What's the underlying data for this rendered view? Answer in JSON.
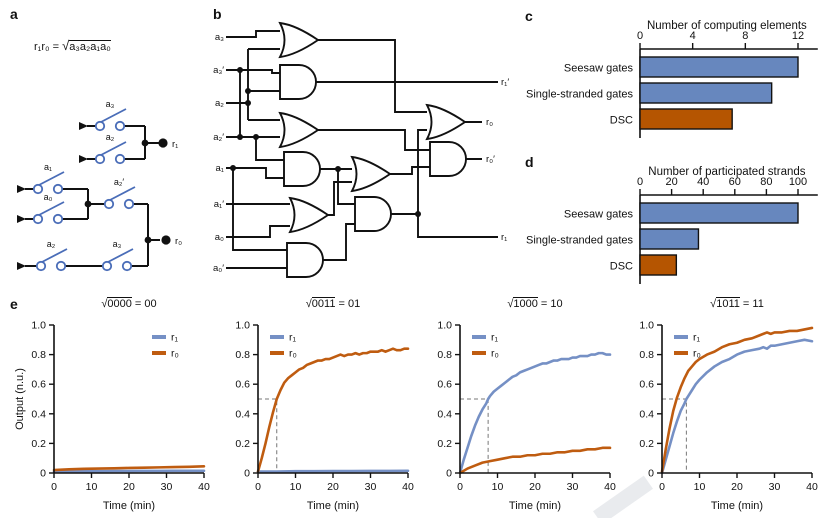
{
  "figure": {
    "panel_labels": {
      "a": "a",
      "b": "b",
      "c": "c",
      "d": "d",
      "e": "e"
    },
    "colors": {
      "bar_blue": "#6787be",
      "bar_orange": "#b55501",
      "line_blue": "#7590c5",
      "line_orange": "#bf5c10",
      "switch_blue": "#4a6db8",
      "axis_black": "#111111",
      "dash_gray": "#777777"
    }
  },
  "panel_a": {
    "formula_lhs": "r₁r₀ = ",
    "sqrt_sign": "√",
    "formula_radicand": "a₃a₂a₁a₀",
    "switches": [
      "a₃",
      "a₂",
      "a₁",
      "a₀",
      "a₂′",
      "a₂",
      "a₃"
    ],
    "outputs": {
      "r1": "r₁",
      "r0": "r₀"
    }
  },
  "panel_b": {
    "inputs": [
      "a₃",
      "a₃′",
      "a₂",
      "a₂′",
      "a₁",
      "a₁′",
      "a₀",
      "a₀′"
    ],
    "outputs": [
      "r₁′",
      "r₀",
      "r₀′",
      "r₁"
    ]
  },
  "chart_data": [
    {
      "id": "c",
      "type": "bar",
      "orientation": "horizontal",
      "title": "Number of computing elements",
      "categories": [
        "Seesaw gates",
        "Single-stranded gates",
        "DSC"
      ],
      "values": [
        12,
        10,
        7
      ],
      "bar_colors": [
        "#6787be",
        "#6787be",
        "#b55501"
      ],
      "xticks": [
        0,
        4,
        8,
        12
      ],
      "xlim": [
        0,
        13.2
      ],
      "grid": false
    },
    {
      "id": "d",
      "type": "bar",
      "orientation": "horizontal",
      "title": "Number of participated strands",
      "categories": [
        "Seesaw gates",
        "Single-stranded gates",
        "DSC"
      ],
      "values": [
        100,
        37,
        23
      ],
      "bar_colors": [
        "#6787be",
        "#6787be",
        "#b55501"
      ],
      "xticks": [
        0,
        20,
        40,
        60,
        80,
        100
      ],
      "xlim": [
        0,
        110
      ],
      "grid": false
    },
    {
      "id": "e1",
      "type": "line",
      "title_sqrt": "√",
      "title_radicand": "0000",
      "title_suffix": " = 00",
      "xlabel": "Time (min)",
      "ylabel": "Output (n.u.)",
      "xticks": [
        0,
        10,
        20,
        30,
        40
      ],
      "yticks": [
        0,
        0.2,
        0.4,
        0.6,
        0.8,
        1.0
      ],
      "xlim": [
        0,
        40
      ],
      "ylim": [
        0,
        1.0
      ],
      "legend": [
        "r₁",
        "r₀"
      ],
      "legend_pos": "top-right",
      "dash_t50": null,
      "series": [
        {
          "name": "r₁",
          "color": "#7590c5",
          "points": [
            [
              0,
              0.01
            ],
            [
              4,
              0.01
            ],
            [
              8,
              0.012
            ],
            [
              12,
              0.012
            ],
            [
              16,
              0.013
            ],
            [
              20,
              0.013
            ],
            [
              24,
              0.014
            ],
            [
              28,
              0.014
            ],
            [
              32,
              0.015
            ],
            [
              36,
              0.015
            ],
            [
              40,
              0.015
            ]
          ]
        },
        {
          "name": "r₀",
          "color": "#bf5c10",
          "points": [
            [
              0,
              0.02
            ],
            [
              4,
              0.025
            ],
            [
              8,
              0.028
            ],
            [
              12,
              0.03
            ],
            [
              16,
              0.032
            ],
            [
              20,
              0.034
            ],
            [
              24,
              0.036
            ],
            [
              28,
              0.038
            ],
            [
              32,
              0.04
            ],
            [
              36,
              0.042
            ],
            [
              40,
              0.045
            ]
          ]
        }
      ]
    },
    {
      "id": "e2",
      "type": "line",
      "title_sqrt": "√",
      "title_radicand": "0011",
      "title_suffix": " = 01",
      "xlabel": "Time (min)",
      "ylabel": null,
      "xticks": [
        0,
        10,
        20,
        30,
        40
      ],
      "yticks": [
        0,
        0.2,
        0.4,
        0.6,
        0.8,
        1.0
      ],
      "xlim": [
        0,
        40
      ],
      "ylim": [
        0,
        1.0
      ],
      "legend": [
        "r₁",
        "r₀"
      ],
      "legend_pos": "top-left",
      "dash_t50": 5,
      "series": [
        {
          "name": "r₁",
          "color": "#7590c5",
          "points": [
            [
              0,
              0.01
            ],
            [
              5,
              0.01
            ],
            [
              10,
              0.012
            ],
            [
              15,
              0.012
            ],
            [
              20,
              0.013
            ],
            [
              25,
              0.013
            ],
            [
              30,
              0.014
            ],
            [
              35,
              0.014
            ],
            [
              40,
              0.015
            ]
          ]
        },
        {
          "name": "r₀",
          "color": "#bf5c10",
          "points": [
            [
              0,
              0.01
            ],
            [
              1,
              0.1
            ],
            [
              2,
              0.2
            ],
            [
              3,
              0.31
            ],
            [
              4,
              0.41
            ],
            [
              5,
              0.5
            ],
            [
              6,
              0.56
            ],
            [
              7,
              0.61
            ],
            [
              8,
              0.64
            ],
            [
              9,
              0.66
            ],
            [
              10,
              0.68
            ],
            [
              11,
              0.7
            ],
            [
              12,
              0.71
            ],
            [
              13,
              0.73
            ],
            [
              14,
              0.74
            ],
            [
              15,
              0.75
            ],
            [
              16,
              0.76
            ],
            [
              17,
              0.76
            ],
            [
              18,
              0.77
            ],
            [
              19,
              0.77
            ],
            [
              20,
              0.78
            ],
            [
              21,
              0.79
            ],
            [
              22,
              0.8
            ],
            [
              23,
              0.79
            ],
            [
              24,
              0.8
            ],
            [
              25,
              0.8
            ],
            [
              26,
              0.81
            ],
            [
              27,
              0.8
            ],
            [
              28,
              0.81
            ],
            [
              29,
              0.81
            ],
            [
              30,
              0.82
            ],
            [
              31,
              0.82
            ],
            [
              32,
              0.82
            ],
            [
              33,
              0.83
            ],
            [
              34,
              0.82
            ],
            [
              35,
              0.83
            ],
            [
              36,
              0.84
            ],
            [
              37,
              0.83
            ],
            [
              38,
              0.83
            ],
            [
              39,
              0.84
            ],
            [
              40,
              0.84
            ]
          ]
        }
      ]
    },
    {
      "id": "e3",
      "type": "line",
      "title_sqrt": "√",
      "title_radicand": "1000",
      "title_suffix": " = 10",
      "xlabel": "Time (min)",
      "ylabel": null,
      "xticks": [
        0,
        10,
        20,
        30,
        40
      ],
      "yticks": [
        0,
        0.2,
        0.4,
        0.6,
        0.8,
        1.0
      ],
      "xlim": [
        0,
        40
      ],
      "ylim": [
        0,
        1.0
      ],
      "legend": [
        "r₁",
        "r₀"
      ],
      "legend_pos": "top-left",
      "dash_t50": 7.5,
      "series": [
        {
          "name": "r₁",
          "color": "#7590c5",
          "points": [
            [
              0,
              0
            ],
            [
              1,
              0.09
            ],
            [
              2,
              0.17
            ],
            [
              3,
              0.25
            ],
            [
              4,
              0.32
            ],
            [
              5,
              0.38
            ],
            [
              6,
              0.43
            ],
            [
              7,
              0.47
            ],
            [
              7.5,
              0.5
            ],
            [
              8,
              0.52
            ],
            [
              9,
              0.55
            ],
            [
              10,
              0.57
            ],
            [
              11,
              0.59
            ],
            [
              12,
              0.61
            ],
            [
              13,
              0.63
            ],
            [
              14,
              0.65
            ],
            [
              15,
              0.66
            ],
            [
              16,
              0.68
            ],
            [
              17,
              0.69
            ],
            [
              18,
              0.7
            ],
            [
              19,
              0.71
            ],
            [
              20,
              0.72
            ],
            [
              21,
              0.73
            ],
            [
              22,
              0.74
            ],
            [
              23,
              0.74
            ],
            [
              24,
              0.75
            ],
            [
              25,
              0.76
            ],
            [
              26,
              0.76
            ],
            [
              27,
              0.77
            ],
            [
              28,
              0.77
            ],
            [
              29,
              0.77
            ],
            [
              30,
              0.78
            ],
            [
              31,
              0.78
            ],
            [
              32,
              0.79
            ],
            [
              33,
              0.79
            ],
            [
              34,
              0.79
            ],
            [
              35,
              0.8
            ],
            [
              36,
              0.8
            ],
            [
              37,
              0.81
            ],
            [
              38,
              0.81
            ],
            [
              39,
              0.8
            ],
            [
              40,
              0.8
            ]
          ]
        },
        {
          "name": "r₀",
          "color": "#bf5c10",
          "points": [
            [
              0,
              0
            ],
            [
              2,
              0.03
            ],
            [
              4,
              0.05
            ],
            [
              6,
              0.07
            ],
            [
              8,
              0.08
            ],
            [
              10,
              0.09
            ],
            [
              12,
              0.1
            ],
            [
              14,
              0.11
            ],
            [
              16,
              0.11
            ],
            [
              18,
              0.12
            ],
            [
              20,
              0.12
            ],
            [
              22,
              0.13
            ],
            [
              24,
              0.13
            ],
            [
              26,
              0.14
            ],
            [
              28,
              0.14
            ],
            [
              30,
              0.15
            ],
            [
              32,
              0.15
            ],
            [
              34,
              0.16
            ],
            [
              36,
              0.16
            ],
            [
              38,
              0.17
            ],
            [
              40,
              0.17
            ]
          ]
        }
      ]
    },
    {
      "id": "e4",
      "type": "line",
      "title_sqrt": "√",
      "title_radicand": "1011",
      "title_suffix": " = 11",
      "xlabel": "Time (min)",
      "ylabel": null,
      "xticks": [
        0,
        10,
        20,
        30,
        40
      ],
      "yticks": [
        0,
        0.2,
        0.4,
        0.6,
        0.8,
        1.0
      ],
      "xlim": [
        0,
        40
      ],
      "ylim": [
        0,
        1.0
      ],
      "legend": [
        "r₁",
        "r₀"
      ],
      "legend_pos": "top-left",
      "dash_t50": 6.5,
      "series": [
        {
          "name": "r₁",
          "color": "#7590c5",
          "points": [
            [
              0,
              0
            ],
            [
              1,
              0.09
            ],
            [
              2,
              0.18
            ],
            [
              3,
              0.27
            ],
            [
              4,
              0.35
            ],
            [
              5,
              0.42
            ],
            [
              6,
              0.47
            ],
            [
              6.5,
              0.5
            ],
            [
              7,
              0.52
            ],
            [
              8,
              0.56
            ],
            [
              9,
              0.6
            ],
            [
              10,
              0.63
            ],
            [
              12,
              0.68
            ],
            [
              14,
              0.72
            ],
            [
              16,
              0.75
            ],
            [
              18,
              0.77
            ],
            [
              20,
              0.8
            ],
            [
              22,
              0.82
            ],
            [
              24,
              0.83
            ],
            [
              26,
              0.84
            ],
            [
              27,
              0.85
            ],
            [
              28,
              0.84
            ],
            [
              29,
              0.86
            ],
            [
              30,
              0.86
            ],
            [
              32,
              0.87
            ],
            [
              34,
              0.88
            ],
            [
              36,
              0.89
            ],
            [
              38,
              0.9
            ],
            [
              40,
              0.89
            ]
          ]
        },
        {
          "name": "r₀",
          "color": "#bf5c10",
          "points": [
            [
              0,
              0.01
            ],
            [
              1,
              0.16
            ],
            [
              2,
              0.3
            ],
            [
              3,
              0.42
            ],
            [
              4,
              0.51
            ],
            [
              5,
              0.58
            ],
            [
              6,
              0.64
            ],
            [
              7,
              0.69
            ],
            [
              8,
              0.72
            ],
            [
              9,
              0.75
            ],
            [
              10,
              0.77
            ],
            [
              12,
              0.8
            ],
            [
              14,
              0.82
            ],
            [
              16,
              0.85
            ],
            [
              18,
              0.87
            ],
            [
              20,
              0.88
            ],
            [
              22,
              0.9
            ],
            [
              24,
              0.91
            ],
            [
              26,
              0.93
            ],
            [
              27,
              0.94
            ],
            [
              28,
              0.95
            ],
            [
              29,
              0.94
            ],
            [
              30,
              0.95
            ],
            [
              32,
              0.95
            ],
            [
              34,
              0.96
            ],
            [
              36,
              0.96
            ],
            [
              38,
              0.97
            ],
            [
              40,
              0.98
            ]
          ]
        }
      ]
    }
  ]
}
